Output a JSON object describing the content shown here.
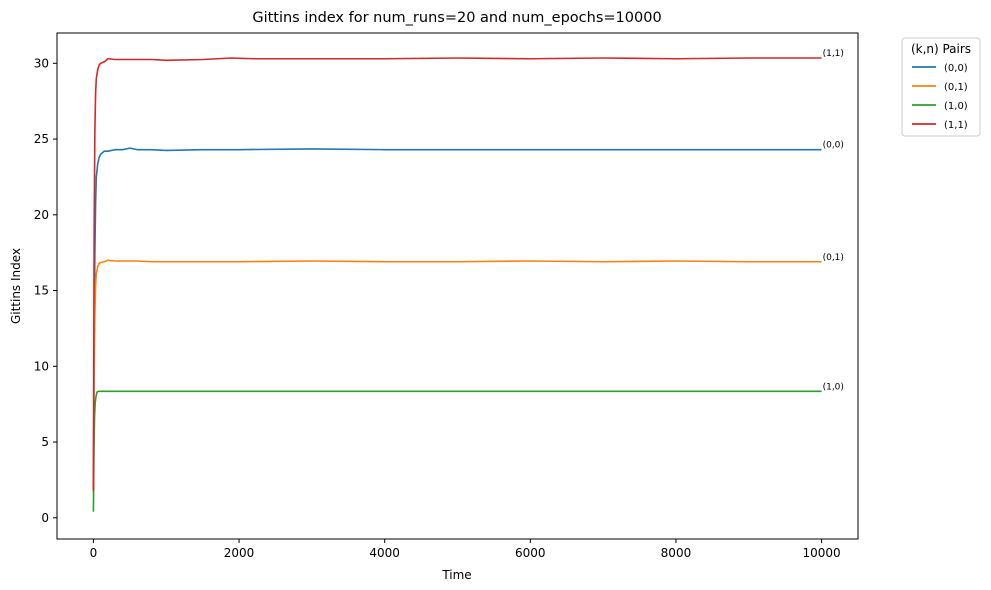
{
  "chart_data": {
    "type": "line",
    "title": "Gittins index for num_runs=20 and num_epochs=10000",
    "xlabel": "Time",
    "ylabel": "Gittins Index",
    "xlim": [
      -500,
      10500
    ],
    "ylim": [
      -1.4,
      32.0
    ],
    "xticks": [
      0,
      2000,
      4000,
      6000,
      8000,
      10000
    ],
    "xtick_labels": [
      "0",
      "2000",
      "4000",
      "6000",
      "8000",
      "10000"
    ],
    "yticks": [
      0,
      5,
      10,
      15,
      20,
      25,
      30
    ],
    "ytick_labels": [
      "0",
      "5",
      "10",
      "15",
      "20",
      "25",
      "30"
    ],
    "grid": false,
    "legend": {
      "title": "(k,n) Pairs",
      "placement": "outside-top-right"
    },
    "series": [
      {
        "name": "(0,0)",
        "color": "#1f77b4",
        "end_label": "(0,0)",
        "points": [
          [
            0,
            1.8
          ],
          [
            10,
            12.0
          ],
          [
            20,
            17.5
          ],
          [
            30,
            20.8
          ],
          [
            40,
            22.5
          ],
          [
            60,
            23.4
          ],
          [
            80,
            23.8
          ],
          [
            100,
            24.0
          ],
          [
            150,
            24.2
          ],
          [
            200,
            24.2
          ],
          [
            300,
            24.3
          ],
          [
            400,
            24.3
          ],
          [
            500,
            24.4
          ],
          [
            600,
            24.3
          ],
          [
            800,
            24.3
          ],
          [
            1000,
            24.25
          ],
          [
            1500,
            24.3
          ],
          [
            2000,
            24.3
          ],
          [
            3000,
            24.35
          ],
          [
            4000,
            24.3
          ],
          [
            5000,
            24.3
          ],
          [
            6000,
            24.3
          ],
          [
            7000,
            24.3
          ],
          [
            8000,
            24.3
          ],
          [
            9000,
            24.3
          ],
          [
            10000,
            24.3
          ]
        ]
      },
      {
        "name": "(0,1)",
        "color": "#ff7f0e",
        "end_label": "(0,1)",
        "points": [
          [
            0,
            1.6
          ],
          [
            10,
            9.5
          ],
          [
            20,
            13.5
          ],
          [
            30,
            15.3
          ],
          [
            40,
            16.1
          ],
          [
            60,
            16.6
          ],
          [
            80,
            16.8
          ],
          [
            100,
            16.85
          ],
          [
            150,
            16.9
          ],
          [
            200,
            17.0
          ],
          [
            300,
            16.95
          ],
          [
            400,
            16.95
          ],
          [
            600,
            16.95
          ],
          [
            800,
            16.9
          ],
          [
            1000,
            16.9
          ],
          [
            1500,
            16.9
          ],
          [
            2000,
            16.9
          ],
          [
            3000,
            16.95
          ],
          [
            4000,
            16.9
          ],
          [
            5000,
            16.9
          ],
          [
            6000,
            16.95
          ],
          [
            7000,
            16.9
          ],
          [
            8000,
            16.95
          ],
          [
            9000,
            16.9
          ],
          [
            10000,
            16.9
          ]
        ]
      },
      {
        "name": "(1,0)",
        "color": "#2ca02c",
        "end_label": "(1,0)",
        "points": [
          [
            0,
            0.4
          ],
          [
            8,
            4.5
          ],
          [
            15,
            6.6
          ],
          [
            25,
            7.6
          ],
          [
            35,
            8.0
          ],
          [
            50,
            8.3
          ],
          [
            70,
            8.35
          ],
          [
            100,
            8.35
          ],
          [
            200,
            8.35
          ],
          [
            1000,
            8.35
          ],
          [
            2000,
            8.35
          ],
          [
            4000,
            8.35
          ],
          [
            6000,
            8.35
          ],
          [
            8000,
            8.35
          ],
          [
            10000,
            8.35
          ]
        ]
      },
      {
        "name": "(1,1)",
        "color": "#d62728",
        "end_label": "(1,1)",
        "points": [
          [
            0,
            1.8
          ],
          [
            10,
            19.0
          ],
          [
            20,
            25.5
          ],
          [
            30,
            28.0
          ],
          [
            40,
            29.0
          ],
          [
            60,
            29.6
          ],
          [
            80,
            29.9
          ],
          [
            100,
            30.0
          ],
          [
            150,
            30.1
          ],
          [
            200,
            30.3
          ],
          [
            300,
            30.25
          ],
          [
            500,
            30.25
          ],
          [
            800,
            30.25
          ],
          [
            1000,
            30.2
          ],
          [
            1500,
            30.25
          ],
          [
            1900,
            30.35
          ],
          [
            2200,
            30.3
          ],
          [
            3000,
            30.3
          ],
          [
            4000,
            30.3
          ],
          [
            5000,
            30.35
          ],
          [
            6000,
            30.3
          ],
          [
            7000,
            30.35
          ],
          [
            8000,
            30.3
          ],
          [
            9000,
            30.35
          ],
          [
            10000,
            30.35
          ]
        ]
      }
    ]
  }
}
